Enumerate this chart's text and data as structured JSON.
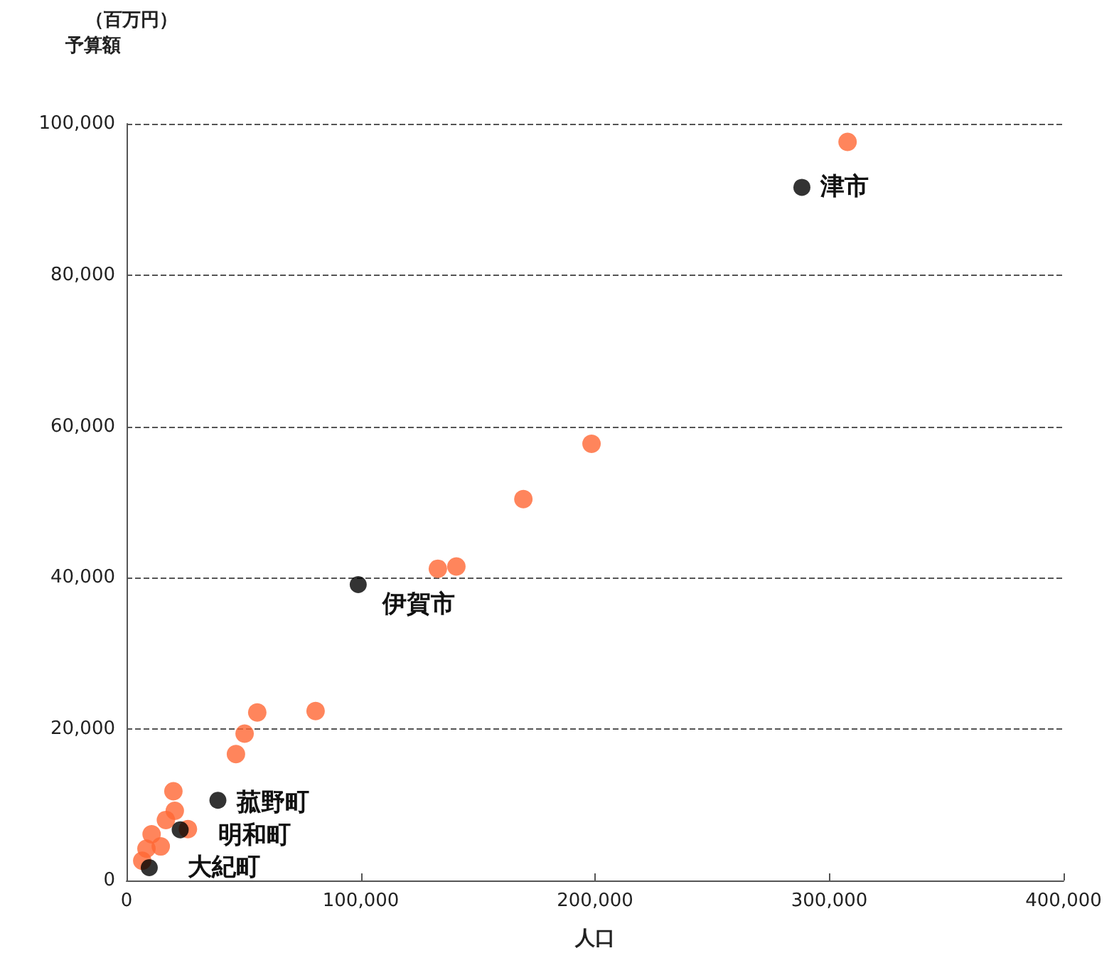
{
  "chart_data": {
    "type": "scatter",
    "xlabel": "人口",
    "ylabel": "予算額",
    "series": [
      {
        "color": "#ff6633",
        "x": [
          307800,
          198500,
          169400,
          132900,
          140800,
          80700,
          55800,
          50400,
          46700,
          20000,
          20600,
          16800,
          26200,
          10700,
          14600,
          8500,
          6700
        ],
        "values": [
          97600,
          57700,
          50400,
          41200,
          41500,
          22400,
          22200,
          19400,
          16700,
          11800,
          9200,
          8000,
          6800,
          6100,
          4500,
          4200,
          2600
        ]
      },
      {
        "color": "#000000",
        "x": [
          288300,
          98900,
          39000,
          22900,
          9700
        ],
        "values": [
          91600,
          39100,
          10600,
          6700,
          1700
        ]
      }
    ],
    "annotations": [
      {
        "text": "津市",
        "x": 288300,
        "y": 91600
      },
      {
        "text": "伊賀市",
        "x": 98900,
        "y": 39100
      },
      {
        "text": "菰野町",
        "x": 39000,
        "y": 10600
      },
      {
        "text": "明和町",
        "x": 22900,
        "y": 6700
      },
      {
        "text": "大紀町",
        "x": 9700,
        "y": 1700
      },
      "（百万円）"
    ],
    "xlim": [
      0,
      400000
    ],
    "xticks": [
      0,
      {
        "value": 100000,
        "label": "100,000"
      },
      {
        "value": 200000,
        "label": "200,000"
      },
      {
        "value": 300000,
        "label": "300,000"
      },
      {
        "value": 400000,
        "label": "400,000"
      }
    ],
    "ylim": [
      0,
      100000
    ],
    "yticks": [
      0,
      {
        "value": 20000,
        "label": "20,000"
      },
      {
        "value": 40000,
        "label": "40,000"
      },
      {
        "value": 60000,
        "label": "60,000"
      },
      {
        "value": 80000,
        "label": "80,000"
      },
      {
        "value": 100000,
        "label": "100,000"
      }
    ],
    "grid": "y",
    "marker": "circle"
  }
}
